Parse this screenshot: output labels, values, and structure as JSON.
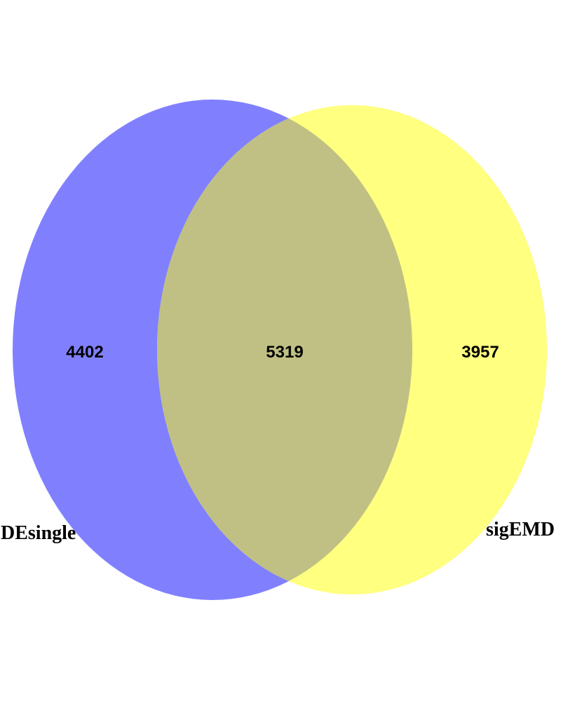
{
  "venn": {
    "sets": [
      {
        "name": "DEsingle",
        "color": "#8080FF"
      },
      {
        "name": "sigEMD",
        "color": "#FFFF80"
      }
    ],
    "overlap_color": "#C0C084",
    "counts": {
      "only_set_1": "4402",
      "intersection": "5319",
      "only_set_2": "3957"
    }
  }
}
